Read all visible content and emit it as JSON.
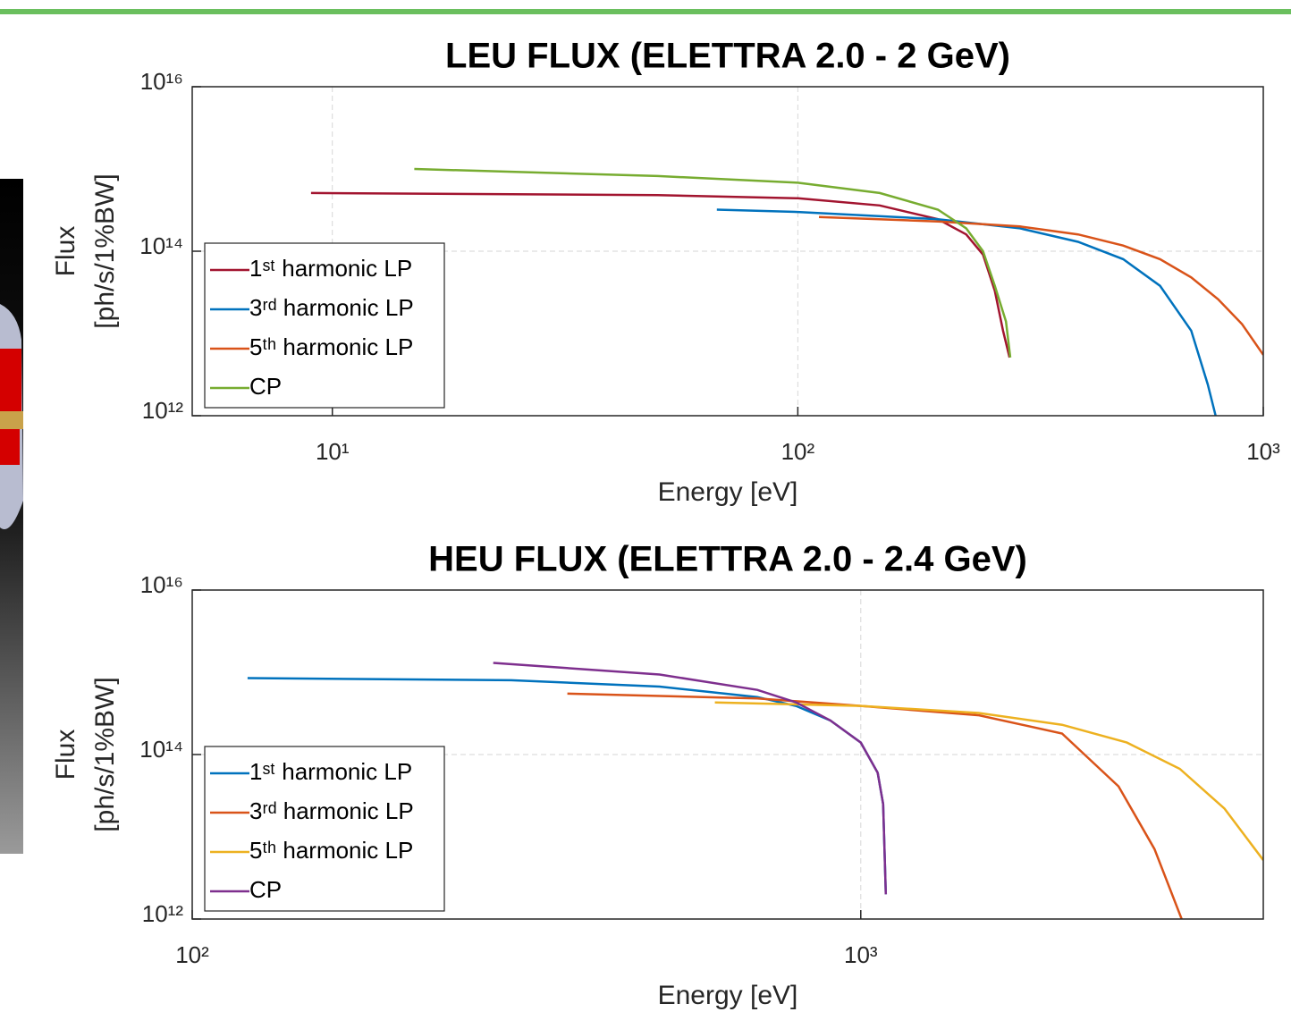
{
  "chart_data": [
    {
      "type": "line",
      "title": "LEU FLUX (ELETTRA 2.0 - 2 GeV)",
      "xlabel": "Energy [eV]",
      "ylabel": [
        "Flux",
        "[ph/s/1%BW]"
      ],
      "xscale": "log",
      "yscale": "log",
      "grid": true,
      "legend": "lower left",
      "xlim": [
        5,
        1000
      ],
      "ylim": [
        1000000000000.0,
        1e+16
      ],
      "xticks": [
        {
          "value": 10,
          "label": "10¹"
        },
        {
          "value": 100,
          "label": "10²"
        },
        {
          "value": 1000,
          "label": "10³"
        }
      ],
      "yticks": [
        {
          "value": 1000000000000.0,
          "label": "10¹²"
        },
        {
          "value": 100000000000000.0,
          "label": "10¹⁴"
        },
        {
          "value": 1e+16,
          "label": "10¹⁶"
        }
      ],
      "series": [
        {
          "name": "1ˢᵗ harmonic LP",
          "color": "#a2142f",
          "x": [
            9,
            50,
            100,
            150,
            200,
            230,
            250,
            265,
            276,
            285
          ],
          "values": [
            510000000000000.0,
            480000000000000.0,
            440000000000000.0,
            360000000000000.0,
            245000000000000.0,
            160000000000000.0,
            91000000000000.0,
            33000000000000.0,
            10800000000000.0,
            5100000000000.0
          ]
        },
        {
          "name": "3ʳᵈ harmonic LP",
          "color": "#0072bd",
          "x": [
            67,
            100,
            200,
            300,
            400,
            500,
            600,
            700,
            760,
            790
          ],
          "values": [
            320000000000000.0,
            300000000000000.0,
            245000000000000.0,
            190000000000000.0,
            130000000000000.0,
            80000000000000.0,
            38000000000000.0,
            10800000000000.0,
            2400000000000.0,
            1000000000000.0
          ]
        },
        {
          "name": "5ᵗʰ harmonic LP",
          "color": "#d95319",
          "x": [
            111,
            200,
            300,
            400,
            500,
            600,
            700,
            800,
            900,
            1000
          ],
          "values": [
            260000000000000.0,
            230000000000000.0,
            200000000000000.0,
            160000000000000.0,
            117000000000000.0,
            80000000000000.0,
            48000000000000.0,
            26000000000000.0,
            13000000000000.0,
            5500000000000.0
          ]
        },
        {
          "name": "CP",
          "color": "#77ac30",
          "x": [
            15,
            50,
            100,
            150,
            200,
            230,
            250,
            265,
            280,
            286
          ],
          "values": [
            1000000000000000.0,
            820000000000000.0,
            680000000000000.0,
            510000000000000.0,
            320000000000000.0,
            190000000000000.0,
            100000000000000.0,
            38000000000000.0,
            14000000000000.0,
            5100000000000.0
          ]
        }
      ]
    },
    {
      "type": "line",
      "title": "HEU FLUX (ELETTRA 2.0 - 2.4 GeV)",
      "xlabel": "Energy [eV]",
      "ylabel": [
        "Flux",
        "[ph/s/1%BW]"
      ],
      "xscale": "log",
      "yscale": "log",
      "grid": true,
      "legend": "lower left",
      "xlim": [
        100,
        4000
      ],
      "ylim": [
        1000000000000.0,
        1e+16
      ],
      "xticks": [
        {
          "value": 100,
          "label": "10²"
        },
        {
          "value": 1000,
          "label": "10³"
        }
      ],
      "yticks": [
        {
          "value": 1000000000000.0,
          "label": "10¹²"
        },
        {
          "value": 100000000000000.0,
          "label": "10¹⁴"
        },
        {
          "value": 1e+16,
          "label": "10¹⁶"
        }
      ],
      "series": [
        {
          "name": "1ˢᵗ harmonic LP",
          "color": "#0072bd",
          "x": [
            121,
            300,
            500,
            700,
            800,
            900,
            1000,
            1060,
            1080,
            1090
          ],
          "values": [
            850000000000000.0,
            800000000000000.0,
            670000000000000.0,
            500000000000000.0,
            390000000000000.0,
            260000000000000.0,
            140000000000000.0,
            60000000000000.0,
            25000000000000.0,
            2000000000000.0
          ]
        },
        {
          "name": "3ʳᵈ harmonic LP",
          "color": "#d95319",
          "x": [
            364,
            700,
            1000,
            1503,
            2000,
            2430,
            2750,
            3020
          ],
          "values": [
            550000000000000.0,
            480000000000000.0,
            390000000000000.0,
            300000000000000.0,
            180000000000000.0,
            41000000000000.0,
            7100000000000.0,
            1000000000000.0
          ]
        },
        {
          "name": "5ᵗʰ harmonic LP",
          "color": "#edb120",
          "x": [
            605,
            1000,
            1500,
            2000,
            2500,
            3000,
            3500,
            4000
          ],
          "values": [
            430000000000000.0,
            390000000000000.0,
            320000000000000.0,
            230000000000000.0,
            140000000000000.0,
            67000000000000.0,
            22000000000000.0,
            5200000000000.0
          ]
        },
        {
          "name": "CP",
          "color": "#7e2f8e",
          "x": [
            282,
            500,
            700,
            800,
            900,
            1000,
            1060,
            1080,
            1090
          ],
          "values": [
            1300000000000000.0,
            940000000000000.0,
            610000000000000.0,
            430000000000000.0,
            260000000000000.0,
            140000000000000.0,
            60000000000000.0,
            25000000000000.0,
            2000000000000.0
          ]
        }
      ]
    }
  ]
}
